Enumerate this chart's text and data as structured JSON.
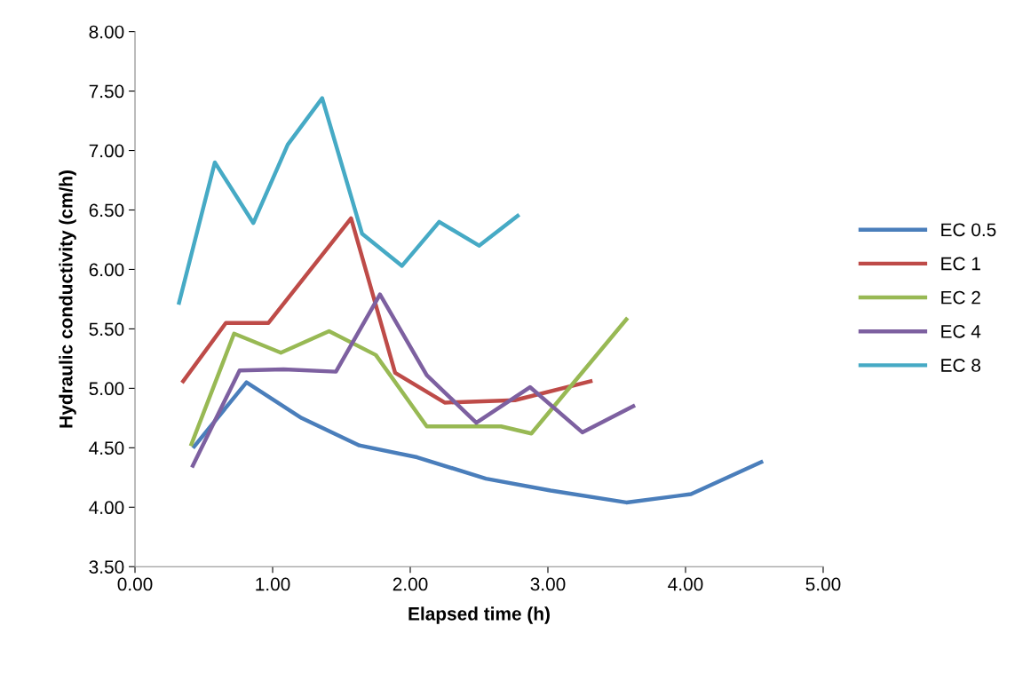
{
  "chart_data": {
    "type": "line",
    "xlabel": "Elapsed time (h)",
    "ylabel": "Hydraulic conductivity (cm/h)",
    "xlim": [
      0,
      5
    ],
    "ylim": [
      3.5,
      8
    ],
    "xticks": [
      {
        "value": 0,
        "label": "0.00"
      },
      {
        "value": 1,
        "label": "1.00"
      },
      {
        "value": 2,
        "label": "2.00"
      },
      {
        "value": 3,
        "label": "3.00"
      },
      {
        "value": 4,
        "label": "4.00"
      },
      {
        "value": 5,
        "label": "5.00"
      }
    ],
    "yticks": [
      {
        "value": 3.5,
        "label": "3.50"
      },
      {
        "value": 4,
        "label": "4.00"
      },
      {
        "value": 4.5,
        "label": "4.50"
      },
      {
        "value": 5,
        "label": "5.00"
      },
      {
        "value": 5.5,
        "label": "5.50"
      },
      {
        "value": 6,
        "label": "6.00"
      },
      {
        "value": 6.5,
        "label": "6.50"
      },
      {
        "value": 7,
        "label": "7.00"
      },
      {
        "value": 7.5,
        "label": "7.50"
      },
      {
        "value": 8,
        "label": "8.00"
      }
    ],
    "grid": false,
    "legend": "right",
    "marker": "none",
    "line_style": "solid",
    "series": [
      {
        "name": "EC 0.5",
        "color": "#4a7ebb",
        "x": [
          0.43,
          0.81,
          1.21,
          1.63,
          2.05,
          2.55,
          3.02,
          3.57,
          4.04,
          4.55
        ],
        "values": [
          4.51,
          5.05,
          4.75,
          4.52,
          4.42,
          4.24,
          4.14,
          4.04,
          4.11,
          4.38
        ]
      },
      {
        "name": "EC 1",
        "color": "#be4b48",
        "x": [
          0.35,
          0.66,
          0.97,
          1.57,
          1.89,
          2.25,
          2.76,
          3.31
        ],
        "values": [
          5.06,
          5.55,
          5.55,
          6.43,
          5.13,
          4.88,
          4.9,
          5.06
        ]
      },
      {
        "name": "EC 2",
        "color": "#98b954",
        "x": [
          0.41,
          0.72,
          1.06,
          1.41,
          1.75,
          2.12,
          2.66,
          2.88,
          3.57
        ],
        "values": [
          4.53,
          5.46,
          5.3,
          5.48,
          5.28,
          4.68,
          4.68,
          4.62,
          5.58
        ]
      },
      {
        "name": "EC 4",
        "color": "#7d60a0",
        "x": [
          0.42,
          0.76,
          1.08,
          1.46,
          1.78,
          2.12,
          2.48,
          2.87,
          3.25,
          3.62
        ],
        "values": [
          4.35,
          5.15,
          5.16,
          5.14,
          5.79,
          5.11,
          4.71,
          5.01,
          4.63,
          4.85
        ]
      },
      {
        "name": "EC 8",
        "color": "#46aac5",
        "x": [
          0.32,
          0.58,
          0.86,
          1.11,
          1.36,
          1.65,
          1.94,
          2.21,
          2.5,
          2.78
        ],
        "values": [
          5.72,
          6.9,
          6.39,
          7.05,
          7.44,
          6.3,
          6.03,
          6.4,
          6.2,
          6.45
        ]
      }
    ]
  }
}
